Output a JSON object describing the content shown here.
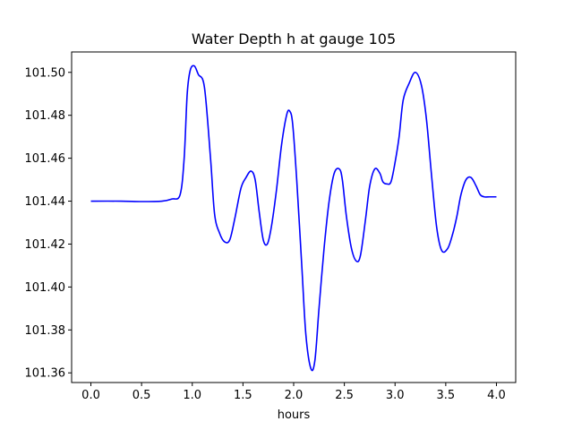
{
  "chart_data": {
    "type": "line",
    "title": "Water Depth h at gauge 105",
    "xlabel": "hours",
    "ylabel": "",
    "xlim": [
      -0.19,
      4.19
    ],
    "ylim": [
      101.3555,
      101.5095
    ],
    "x_ticks": [
      0.0,
      0.5,
      1.0,
      1.5,
      2.0,
      2.5,
      3.0,
      3.5,
      4.0
    ],
    "x_tick_labels": [
      "0.0",
      "0.5",
      "1.0",
      "1.5",
      "2.0",
      "2.5",
      "3.0",
      "3.5",
      "4.0"
    ],
    "y_ticks": [
      101.36,
      101.38,
      101.4,
      101.42,
      101.44,
      101.46,
      101.48,
      101.5
    ],
    "y_tick_labels": [
      "101.36",
      "101.38",
      "101.40",
      "101.42",
      "101.44",
      "101.46",
      "101.48",
      "101.50"
    ],
    "grid": false,
    "color": "#0000ff",
    "series": [
      {
        "x": [
          0.0,
          0.3,
          0.5,
          0.7,
          0.8,
          0.88,
          0.92,
          0.95,
          0.98,
          1.02,
          1.06,
          1.12,
          1.18,
          1.22,
          1.27,
          1.32,
          1.37,
          1.42,
          1.48,
          1.53,
          1.58,
          1.62,
          1.66,
          1.7,
          1.74,
          1.78,
          1.83,
          1.88,
          1.93,
          1.96,
          1.99,
          2.03,
          2.08,
          2.12,
          2.17,
          2.21,
          2.25,
          2.3,
          2.35,
          2.4,
          2.45,
          2.48,
          2.52,
          2.57,
          2.62,
          2.66,
          2.71,
          2.75,
          2.8,
          2.85,
          2.88,
          2.92,
          2.96,
          3.0,
          3.04,
          3.08,
          3.14,
          3.2,
          3.26,
          3.31,
          3.36,
          3.41,
          3.46,
          3.52,
          3.57,
          3.61,
          3.65,
          3.7,
          3.75,
          3.8,
          3.84,
          3.88,
          3.93,
          3.98,
          4.0
        ],
        "y": [
          101.44,
          101.44,
          101.4398,
          101.44,
          101.441,
          101.443,
          101.46,
          101.49,
          101.501,
          101.503,
          101.499,
          101.493,
          101.46,
          101.434,
          101.425,
          101.421,
          101.422,
          101.432,
          101.446,
          101.451,
          101.454,
          101.45,
          101.435,
          101.422,
          101.42,
          101.428,
          101.445,
          101.466,
          101.48,
          101.482,
          101.476,
          101.45,
          101.41,
          101.378,
          101.362,
          101.366,
          101.39,
          101.418,
          101.44,
          101.453,
          101.455,
          101.45,
          101.433,
          101.418,
          101.412,
          101.415,
          101.432,
          101.447,
          101.455,
          101.453,
          101.449,
          101.448,
          101.449,
          101.458,
          101.47,
          101.487,
          101.495,
          101.5,
          101.494,
          101.478,
          101.452,
          101.428,
          101.417,
          101.418,
          101.425,
          101.433,
          101.443,
          101.45,
          101.451,
          101.447,
          101.443,
          101.442,
          101.442,
          101.442,
          101.442
        ]
      }
    ]
  }
}
